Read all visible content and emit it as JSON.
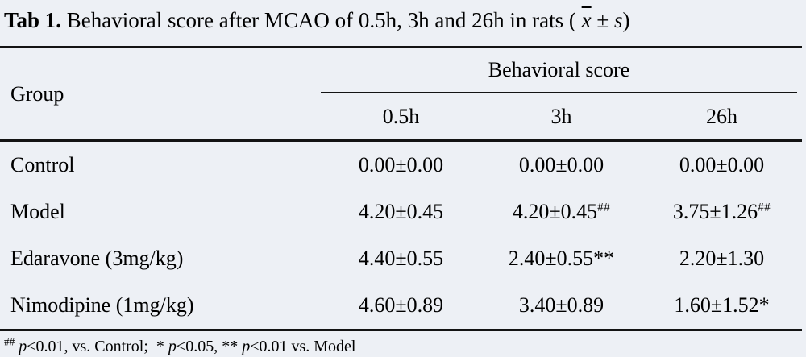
{
  "colors": {
    "background": "#edf0f5",
    "text": "#000000",
    "rule": "#131313"
  },
  "title": {
    "label": "Tab 1.",
    "body": "Behavioral score after MCAO of 0.5h, 3h and 26h in rats (",
    "xbar": "x",
    "pm": "±",
    "s": "s",
    "close": ")"
  },
  "table": {
    "group_header": "Group",
    "span_header": "Behavioral score",
    "columns": [
      "0.5h",
      "3h",
      "26h"
    ],
    "rows": [
      {
        "group": "Control",
        "values": [
          {
            "text": "0.00±0.00"
          },
          {
            "text": "0.00±0.00"
          },
          {
            "text": "0.00±0.00"
          }
        ]
      },
      {
        "group": "Model",
        "values": [
          {
            "text": "4.20±0.45"
          },
          {
            "text": "4.20±0.45",
            "sup": "##"
          },
          {
            "text": "3.75±1.26",
            "sup": "##"
          }
        ]
      },
      {
        "group": "Edaravone (3mg/kg)",
        "values": [
          {
            "text": "4.40±0.55"
          },
          {
            "text": "2.40±0.55**"
          },
          {
            "text": "2.20±1.30"
          }
        ]
      },
      {
        "group": "Nimodipine (1mg/kg)",
        "values": [
          {
            "text": "4.60±0.89"
          },
          {
            "text": "3.40±0.89"
          },
          {
            "text": "1.60±1.52*"
          }
        ]
      }
    ]
  },
  "footnote": {
    "segments": [
      {
        "t": "##",
        "kind": "sup"
      },
      {
        "t": "p",
        "kind": "italic"
      },
      {
        "t": "<0.01, vs. Control;  * ",
        "kind": "text"
      },
      {
        "t": "p",
        "kind": "italic"
      },
      {
        "t": "<0.05, ** ",
        "kind": "text"
      },
      {
        "t": "p",
        "kind": "italic"
      },
      {
        "t": "<0.01 vs. Model",
        "kind": "text"
      }
    ]
  },
  "chart_data": {
    "type": "table",
    "title": "Tab 1. Behavioral score after MCAO of 0.5h, 3h and 26h in rats (x̄ ± s)",
    "columns": [
      "Group",
      "0.5h",
      "3h",
      "26h"
    ],
    "rows": [
      [
        "Control",
        "0.00±0.00",
        "0.00±0.00",
        "0.00±0.00"
      ],
      [
        "Model",
        "4.20±0.45",
        "4.20±0.45##",
        "3.75±1.26##"
      ],
      [
        "Edaravone (3mg/kg)",
        "4.40±0.55",
        "2.40±0.55**",
        "2.20±1.30"
      ],
      [
        "Nimodipine (1mg/kg)",
        "4.60±0.89",
        "3.40±0.89",
        "1.60±1.52*"
      ]
    ],
    "footnote": "## p<0.01, vs. Control; * p<0.05, ** p<0.01 vs. Model"
  }
}
